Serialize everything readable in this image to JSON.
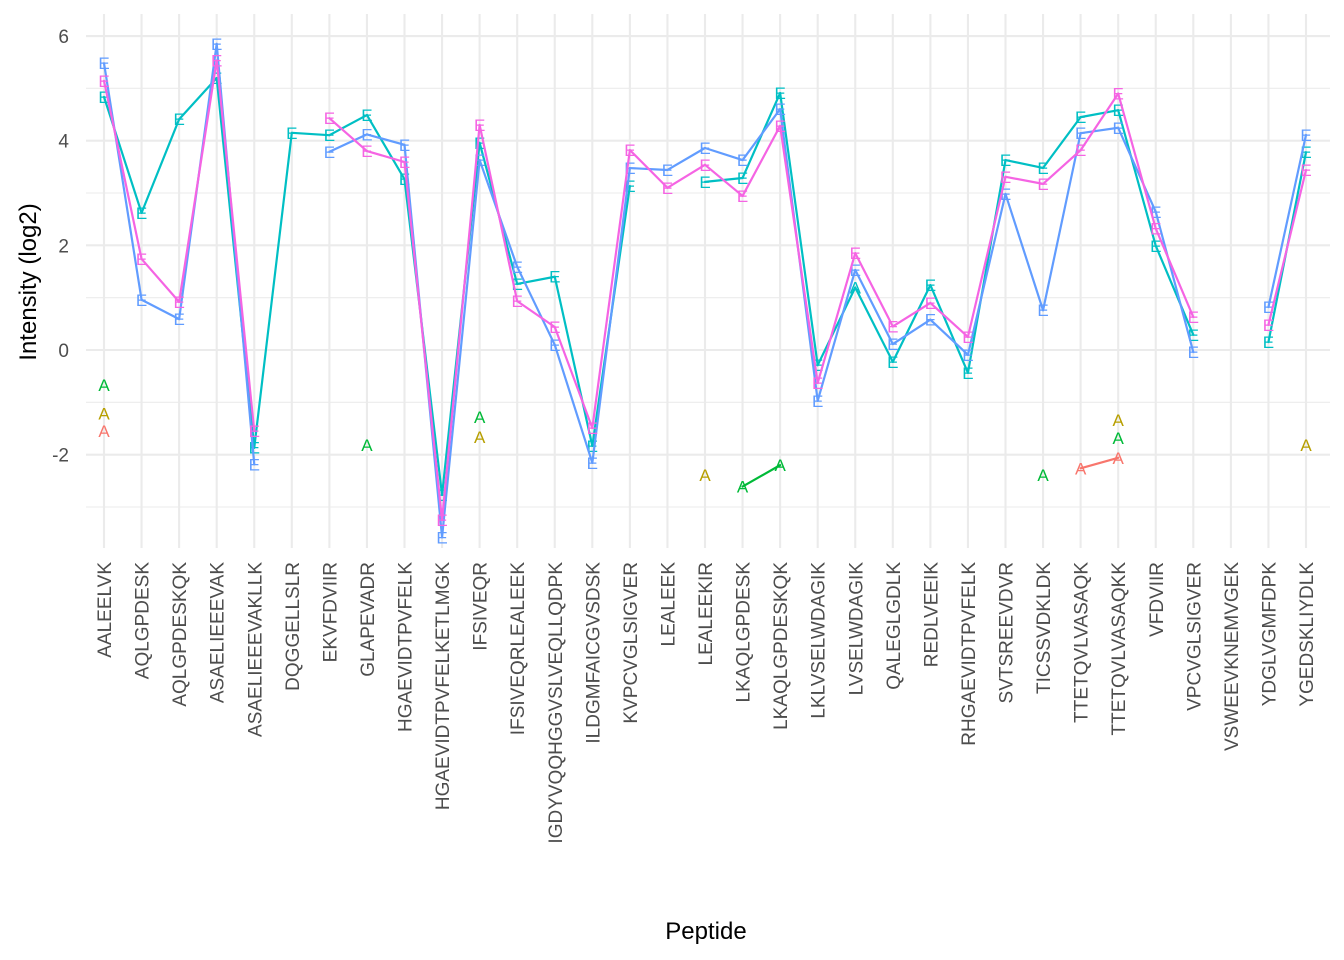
{
  "chart_data": {
    "type": "line",
    "title": "",
    "xlabel": "Peptide",
    "ylabel": "Intensity (log2)",
    "ylim": [
      -3.7,
      6.3
    ],
    "yticks": [
      -2,
      0,
      2,
      4,
      6
    ],
    "grid": true,
    "legend": "none",
    "categories": [
      "AALEELVK",
      "AQLGPDESK",
      "AQLGPDESKQK",
      "ASAELIEEEVAK",
      "ASAELIEEEVAKLLK",
      "DQGGELLSLR",
      "EKVFDVIIR",
      "GLAPEVADR",
      "HGAEVIDTPVFELK",
      "HGAEVIDTPVFELKETLMGK",
      "IFSIVEQR",
      "IFSIVEQRLEALEEK",
      "IGDYVQQHGGVSLVEQLLQDPK",
      "ILDGMFAICGVSDSK",
      "KVPCVGLSIGVER",
      "LEALEEK",
      "LEALEEKIR",
      "LKAQLGPDESK",
      "LKAQLGPDESKQK",
      "LKLVSELWDAGIK",
      "LVSELWDAGIK",
      "QALEGLGDLK",
      "REDLVEEIK",
      "RHGAEVIDTPVFELK",
      "SVTSREEVDVR",
      "TICSSVDKLDK",
      "TTETQVLVASAQK",
      "TTETQVLVASAQKK",
      "VFDVIIR",
      "VPCVGLSIGVER",
      "VSWEEVKNEMVGEK",
      "YDGLVGMFDPK",
      "YGEDSKLIYDLK"
    ],
    "series": [
      {
        "name": "teal",
        "color": "#00BFC4",
        "label": "E",
        "label_overrides": {
          "20": "A"
        },
        "values": [
          5.41,
          2.62,
          4.41,
          5.35,
          -1.6,
          4.15,
          4.22,
          4.49,
          3.76,
          -2.77,
          4.15,
          1.3,
          1.4,
          -1.68,
          3.44,
          null,
          3.48,
          3.44,
          4.91,
          -0.29,
          1.5,
          0.04,
          1.24,
          -0.13,
          3.63,
          3.48,
          4.45,
          4.85,
          2.45,
          0.52,
          null,
          0.61,
          4.01
        ]
      },
      {
        "name": "blue",
        "color": "#619CFF",
        "label": "E",
        "values": [
          5.48,
          0.96,
          0.82,
          5.85,
          -1.65,
          null,
          4.17,
          4.12,
          3.92,
          -3.35,
          4.05,
          1.59,
          0.29,
          -1.85,
          3.63,
          3.44,
          3.86,
          3.63,
          4.68,
          -0.55,
          1.72,
          0.19,
          1.0,
          0.06,
          3.25,
          0.76,
          4.22,
          4.82,
          2.64,
          0.38,
          null,
          0.82,
          4.11
        ]
      },
      {
        "name": "pink",
        "color": "#F564E3",
        "label": "E",
        "values": [
          5.45,
          1.74,
          0.92,
          5.65,
          -1.55,
          null,
          4.43,
          4.07,
          3.86,
          -3.25,
          4.3,
          1.24,
          0.44,
          -1.49,
          3.82,
          3.1,
          3.73,
          3.25,
          4.55,
          -0.4,
          1.85,
          0.45,
          1.09,
          0.25,
          3.31,
          3.48,
          4.2,
          4.9,
          2.55,
          0.63,
          null,
          0.71,
          3.82
        ]
      },
      {
        "name": "red",
        "color": "#F8766D",
        "label": "A",
        "values": [
          -1.28,
          null,
          null,
          null,
          null,
          null,
          null,
          null,
          null,
          null,
          null,
          null,
          null,
          null,
          null,
          null,
          null,
          null,
          null,
          null,
          null,
          null,
          null,
          null,
          null,
          null,
          -2.26,
          -2.06,
          null,
          null,
          null,
          null,
          null
        ]
      },
      {
        "name": "olive",
        "color": "#B79F00",
        "label": "A",
        "values": [
          -1.21,
          null,
          null,
          null,
          null,
          null,
          null,
          null,
          null,
          null,
          -1.66,
          null,
          null,
          null,
          null,
          null,
          -2.39,
          null,
          null,
          null,
          null,
          null,
          null,
          null,
          null,
          null,
          null,
          -1.34,
          null,
          null,
          null,
          null,
          -1.82
        ]
      },
      {
        "name": "green",
        "color": "#00BA38",
        "label": "A",
        "values": [
          -0.67,
          null,
          null,
          null,
          null,
          null,
          null,
          -1.82,
          null,
          null,
          -1.28,
          null,
          null,
          null,
          null,
          null,
          null,
          -2.61,
          -2.2,
          null,
          null,
          null,
          null,
          null,
          null,
          -2.39,
          null,
          -1.68,
          null,
          null,
          null,
          null,
          null
        ]
      }
    ]
  }
}
